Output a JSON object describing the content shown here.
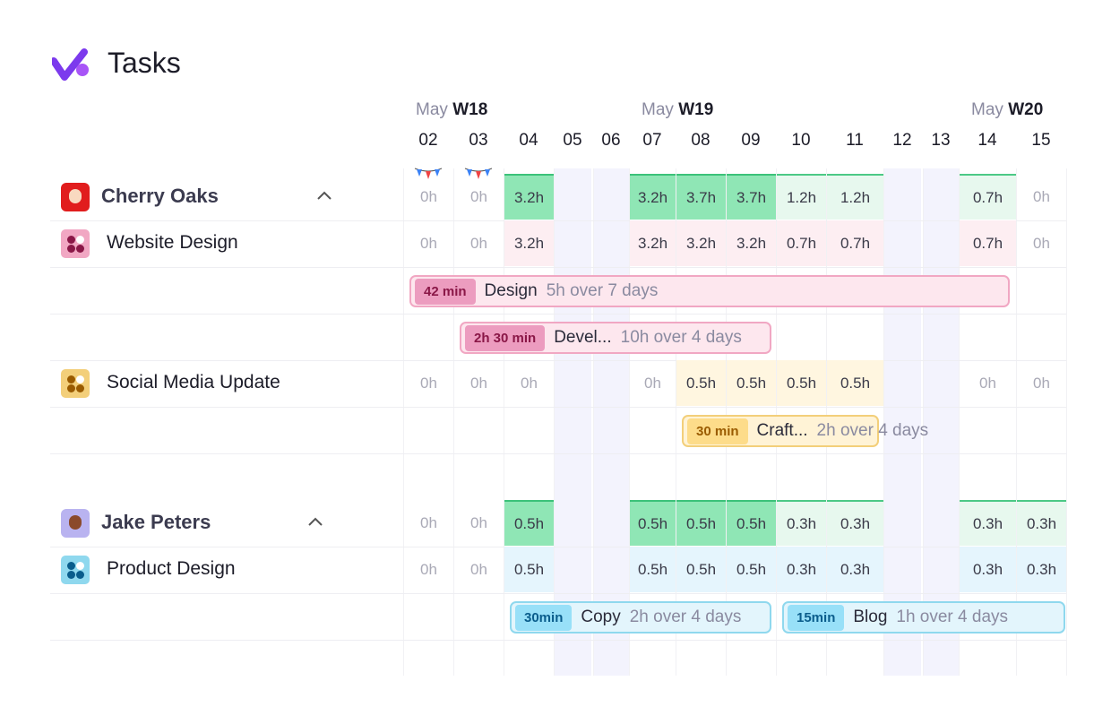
{
  "header": {
    "title": "Tasks"
  },
  "weeks": [
    {
      "month": "May",
      "week": "W18"
    },
    {
      "month": "May",
      "week": "W19"
    },
    {
      "month": "May",
      "week": "W20"
    }
  ],
  "days": [
    "02",
    "03",
    "04",
    "05",
    "06",
    "07",
    "08",
    "09",
    "10",
    "11",
    "12",
    "13",
    "14",
    "15"
  ],
  "people": [
    {
      "name": "Cherry Oaks",
      "hours": [
        "0h",
        "0h",
        "3.2h",
        null,
        null,
        "3.2h",
        "3.7h",
        "3.7h",
        "1.2h",
        "1.2h",
        null,
        null,
        "0.7h",
        "0h"
      ],
      "tasks": [
        {
          "name": "Website Design",
          "theme": "pink",
          "hours": [
            "0h",
            "0h",
            "3.2h",
            null,
            null,
            "3.2h",
            "3.2h",
            "3.2h",
            "0.7h",
            "0.7h",
            null,
            null,
            "0.7h",
            "0h"
          ],
          "bar_rows": [
            [
              {
                "badge": "42 min",
                "name": "Design",
                "detail": "5h over 7 days"
              }
            ],
            [
              {
                "badge": "2h 30 min",
                "name": "Devel...",
                "detail": "10h over 4 days"
              }
            ]
          ]
        },
        {
          "name": "Social Media Update",
          "theme": "yellow",
          "hours": [
            "0h",
            "0h",
            "0h",
            null,
            null,
            "0h",
            "0.5h",
            "0.5h",
            "0.5h",
            "0.5h",
            null,
            null,
            "0h",
            "0h"
          ],
          "bar_rows": [
            [
              {
                "badge": "30 min",
                "name": "Craft...",
                "detail": "2h over 4 days"
              }
            ]
          ]
        }
      ]
    },
    {
      "name": "Jake Peters",
      "hours": [
        "0h",
        "0h",
        "0.5h",
        null,
        null,
        "0.5h",
        "0.5h",
        "0.5h",
        "0.3h",
        "0.3h",
        null,
        null,
        "0.3h",
        "0.3h"
      ],
      "tasks": [
        {
          "name": "Product Design",
          "theme": "blue",
          "hours": [
            "0h",
            "0h",
            "0.5h",
            null,
            null,
            "0.5h",
            "0.5h",
            "0.5h",
            "0.3h",
            "0.3h",
            null,
            null,
            "0.3h",
            "0.3h"
          ],
          "bar_rows": [
            [
              {
                "badge": "30min",
                "name": "Copy",
                "detail": "2h over 4 days"
              },
              {
                "badge": "15min",
                "name": "Blog",
                "detail": "1h over 4 days"
              }
            ]
          ]
        }
      ]
    }
  ]
}
